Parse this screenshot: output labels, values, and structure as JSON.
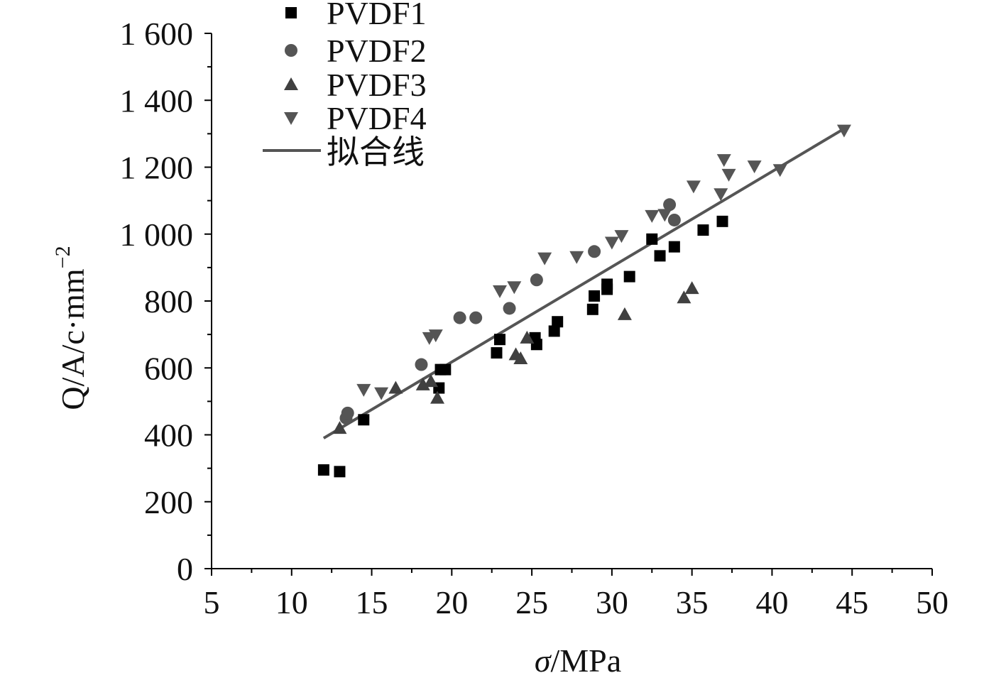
{
  "chart_data": {
    "type": "scatter",
    "title": "",
    "xlabel": {
      "symbol": "σ",
      "unit": "/MPa"
    },
    "ylabel": {
      "base": "Q/A/c·mm",
      "sup": "−2"
    },
    "xlim": [
      5,
      50
    ],
    "ylim": [
      0,
      1600
    ],
    "xticks": [
      5,
      10,
      15,
      20,
      25,
      30,
      35,
      40,
      45,
      50
    ],
    "xtick_labels": [
      "5",
      "10",
      "15",
      "20",
      "25",
      "30",
      "35",
      "40",
      "45",
      "50"
    ],
    "yticks": [
      0,
      200,
      400,
      600,
      800,
      1000,
      1200,
      1400,
      1600
    ],
    "ytick_labels": [
      "0",
      "200",
      "400",
      "600",
      "800",
      "1 000",
      "1 200",
      "1 400",
      "1 600"
    ],
    "legend_position": "top-left",
    "grid": false,
    "series": [
      {
        "name": "PVDF1",
        "marker": "square",
        "color": "#000000",
        "points": [
          [
            12.0,
            295
          ],
          [
            13.0,
            290
          ],
          [
            14.5,
            445
          ],
          [
            19.2,
            540
          ],
          [
            19.3,
            595
          ],
          [
            19.6,
            595
          ],
          [
            22.8,
            645
          ],
          [
            23.0,
            685
          ],
          [
            25.3,
            670
          ],
          [
            25.2,
            690
          ],
          [
            26.4,
            710
          ],
          [
            26.6,
            738
          ],
          [
            28.8,
            775
          ],
          [
            28.9,
            815
          ],
          [
            29.7,
            835
          ],
          [
            29.7,
            850
          ],
          [
            31.1,
            873
          ],
          [
            32.5,
            985
          ],
          [
            33.0,
            935
          ],
          [
            33.9,
            962
          ],
          [
            35.7,
            1012
          ],
          [
            36.9,
            1038
          ]
        ]
      },
      {
        "name": "PVDF2",
        "marker": "circle",
        "color": "#555555",
        "points": [
          [
            13.4,
            450
          ],
          [
            13.5,
            465
          ],
          [
            18.1,
            610
          ],
          [
            20.5,
            750
          ],
          [
            21.5,
            750
          ],
          [
            23.6,
            778
          ],
          [
            25.3,
            863
          ],
          [
            28.9,
            948
          ],
          [
            33.6,
            1088
          ],
          [
            33.9,
            1042
          ]
        ]
      },
      {
        "name": "PVDF3",
        "marker": "triangle-up",
        "color": "#404040",
        "points": [
          [
            13.0,
            420
          ],
          [
            16.5,
            540
          ],
          [
            18.2,
            550
          ],
          [
            18.7,
            560
          ],
          [
            19.1,
            510
          ],
          [
            24.0,
            640
          ],
          [
            24.3,
            628
          ],
          [
            24.7,
            690
          ],
          [
            30.8,
            760
          ],
          [
            34.5,
            810
          ],
          [
            35.0,
            838
          ]
        ]
      },
      {
        "name": "PVDF4",
        "marker": "triangle-down",
        "color": "#555555",
        "points": [
          [
            14.5,
            535
          ],
          [
            15.6,
            525
          ],
          [
            18.6,
            690
          ],
          [
            19.0,
            698
          ],
          [
            23.0,
            830
          ],
          [
            23.9,
            842
          ],
          [
            25.8,
            928
          ],
          [
            27.8,
            932
          ],
          [
            30.0,
            975
          ],
          [
            30.6,
            995
          ],
          [
            32.5,
            1055
          ],
          [
            33.3,
            1058
          ],
          [
            35.1,
            1143
          ],
          [
            36.8,
            1120
          ],
          [
            37.0,
            1222
          ],
          [
            37.3,
            1178
          ],
          [
            38.9,
            1203
          ],
          [
            40.5,
            1192
          ],
          [
            44.5,
            1310
          ]
        ]
      }
    ],
    "fit_line": {
      "name": "拟合线",
      "color": "#555555",
      "points": [
        [
          12.0,
          390
        ],
        [
          44.5,
          1315
        ]
      ]
    }
  }
}
